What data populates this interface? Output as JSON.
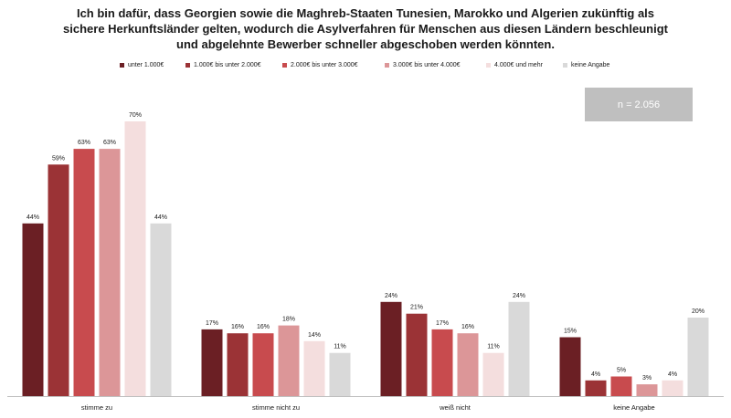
{
  "chart_data": {
    "type": "bar",
    "title_lines": [
      "Ich bin dafür, dass Georgien sowie die Maghreb-Staaten Tunesien, Marokko und Algerien zukünftig als",
      "sichere Herkunftsländer gelten, wodurch die Asylverfahren für Menschen aus diesen Ländern beschleunigt",
      "und abgelehnte Bewerber schneller abgeschoben werden könnten."
    ],
    "categories": [
      "stimme zu",
      "stimme nicht zu",
      "weiß nicht",
      "keine Angabe"
    ],
    "series": [
      {
        "name": "unter 1.000€",
        "color": "#6b1f24",
        "values": [
          44,
          17,
          24,
          15
        ],
        "labels": [
          "44%",
          "17%",
          "24%",
          "15%"
        ]
      },
      {
        "name": "1.000€ bis unter 2.000€",
        "color": "#9b3336",
        "values": [
          59,
          16,
          21,
          4
        ],
        "labels": [
          "59%",
          "16%",
          "21%",
          "4%"
        ]
      },
      {
        "name": "2.000€ bis unter 3.000€",
        "color": "#c84b4e",
        "values": [
          63,
          16,
          17,
          5
        ],
        "labels": [
          "63%",
          "16%",
          "17%",
          "5%"
        ]
      },
      {
        "name": "3.000€ bis unter 4.000€",
        "color": "#dc9698",
        "values": [
          63,
          18,
          16,
          3
        ],
        "labels": [
          "63%",
          "18%",
          "16%",
          "3%"
        ]
      },
      {
        "name": "4.000€ und mehr",
        "color": "#f4dede",
        "values": [
          70,
          14,
          11,
          4
        ],
        "labels": [
          "70%",
          "14%",
          "11%",
          "4%"
        ]
      },
      {
        "name": "keine Angabe",
        "color": "#d9d9d9",
        "values": [
          44,
          11,
          24,
          20
        ],
        "labels": [
          "44%",
          "11%",
          "24%",
          "20%"
        ]
      }
    ],
    "ylim": [
      0,
      70
    ],
    "legend": "top",
    "grid": false,
    "annotation": "n = 2.056"
  }
}
